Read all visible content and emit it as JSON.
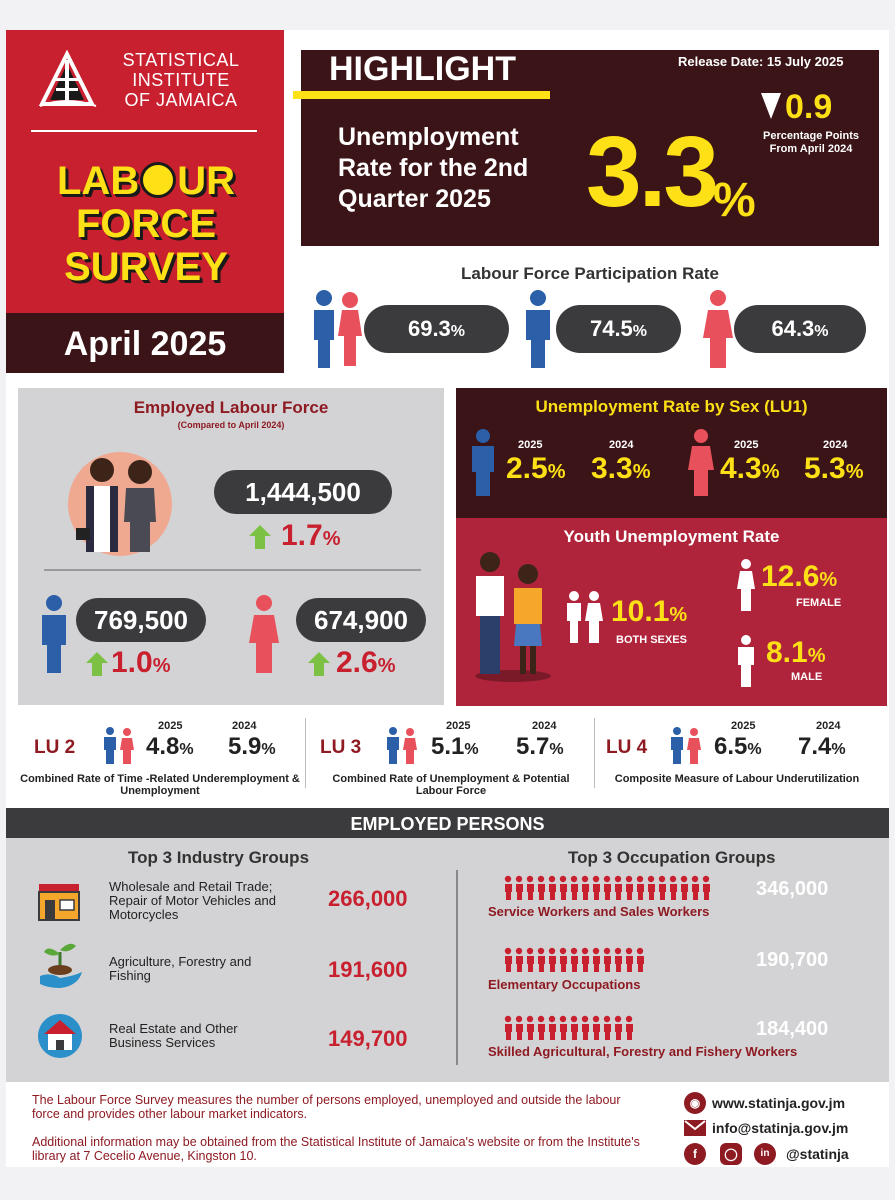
{
  "org": {
    "name_lines": [
      "STATISTICAL",
      "INSTITUTE",
      "OF JAMAICA"
    ]
  },
  "survey": {
    "title_lines": [
      "LAB",
      "UR",
      "FORCE",
      "SURVEY"
    ],
    "period": "April 2025"
  },
  "highlight": {
    "title": "HIGHLIGHT",
    "release_date": "Release Date: 15 July 2025",
    "unemployment_label": "Unemployment Rate for the 2nd Quarter 2025",
    "unemployment_value": "3.3",
    "unemployment_unit": "%",
    "change_value": "0.9",
    "change_label_1": "Percentage Points",
    "change_label_2": "From April 2024"
  },
  "participation": {
    "title": "Labour Force Participation Rate",
    "both": "69.3",
    "male": "74.5",
    "female": "64.3",
    "unit": "%"
  },
  "employed": {
    "title": "Employed Labour Force",
    "subtitle": "(Compared to April 2024)",
    "total": "1,444,500",
    "total_change": "1.7",
    "male": "769,500",
    "male_change": "1.0",
    "female": "674,900",
    "female_change": "2.6",
    "unit": "%"
  },
  "unemp_by_sex": {
    "title": "Unemployment Rate by Sex (LU1)",
    "year_a": "2025",
    "year_b": "2024",
    "male_2025": "2.5",
    "male_2024": "3.3",
    "female_2025": "4.3",
    "female_2024": "5.3",
    "unit": "%"
  },
  "youth": {
    "title": "Youth Unemployment Rate",
    "both": "10.1",
    "both_label": "BOTH SEXES",
    "female": "12.6",
    "female_label": "FEMALE",
    "male": "8.1",
    "male_label": "MALE",
    "unit": "%"
  },
  "lu": [
    {
      "code": "LU 2",
      "y2025": "4.8",
      "y2024": "5.9",
      "desc": "Combined Rate of Time -Related Underemployment & Unemployment"
    },
    {
      "code": "LU 3",
      "y2025": "5.1",
      "y2024": "5.7",
      "desc": "Combined Rate of Unemployment & Potential Labour Force"
    },
    {
      "code": "LU 4",
      "y2025": "6.5",
      "y2024": "7.4",
      "desc": "Composite Measure of Labour Underutilization"
    }
  ],
  "lu_years": {
    "a": "2025",
    "b": "2024"
  },
  "lu_unit": "%",
  "employed_persons": {
    "title": "EMPLOYED PERSONS",
    "industry_title": "Top 3 Industry Groups",
    "occupation_title": "Top 3 Occupation Groups",
    "industries": [
      {
        "label": "Wholesale and Retail Trade; Repair of Motor Vehicles and Motorcycles",
        "value": "266,000",
        "icon": "store-icon"
      },
      {
        "label": "Agriculture, Forestry and Fishing",
        "value": "191,600",
        "icon": "plant-in-hand-icon"
      },
      {
        "label": "Real Estate and Other Business Services",
        "value": "149,700",
        "icon": "house-icon"
      }
    ],
    "occupations": [
      {
        "label": "Service Workers and Sales Workers",
        "value": "346,000",
        "people": 19
      },
      {
        "label": "Elementary Occupations",
        "value": "190,700",
        "people": 13
      },
      {
        "label": "Skilled Agricultural, Forestry and Fishery Workers",
        "value": "184,400",
        "people": 12
      }
    ]
  },
  "footer": {
    "text1": "The Labour Force Survey measures the number of persons employed, unemployed and outside the labour force and provides other labour market indicators.",
    "text2": "Additional information may be obtained from the Statistical Institute of Jamaica's website or from the Institute's library at 7 Cecelio Avenue, Kingston 10.",
    "website": "www.statinja.gov.jm",
    "email": "info@statinja.gov.jm",
    "social": "@statinja",
    "colors": {
      "brand_red": "#c8202f",
      "maroon": "#3a1416",
      "yellow": "#fde015"
    }
  }
}
